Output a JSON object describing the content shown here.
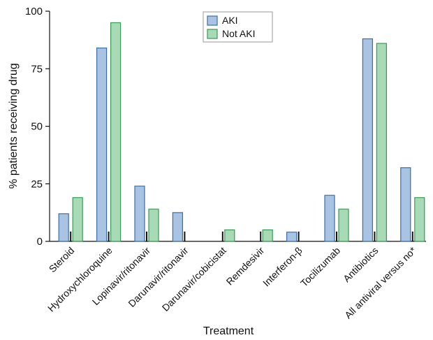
{
  "chart_data": {
    "type": "bar",
    "x_label": "Treatment",
    "y_label": "% patients receiving drug",
    "categories": [
      "Steroid",
      "Hydroxychloroquine",
      "Lopinavir/ritonavir",
      "Darunavir/ritonavir",
      "Darunavir/cobicistat",
      "Remdesivir",
      "Interferon-β",
      "Tocilizumab",
      "Antibiotics",
      "All antiviral versus no*"
    ],
    "series": [
      {
        "name": "AKI",
        "color": "#a9c4e2",
        "edge": "#3b6ea8",
        "values": [
          12,
          84,
          24,
          12.5,
          0,
          0,
          4,
          20,
          88,
          32
        ]
      },
      {
        "name": "Not AKI",
        "color": "#a8dab5",
        "edge": "#3a9a55",
        "values": [
          19,
          95,
          14,
          0,
          5,
          5,
          0,
          14,
          86,
          19
        ]
      }
    ],
    "ylim": [
      0,
      100
    ],
    "yticks": [
      0,
      25,
      50,
      75,
      100
    ],
    "legend": "top-center"
  }
}
